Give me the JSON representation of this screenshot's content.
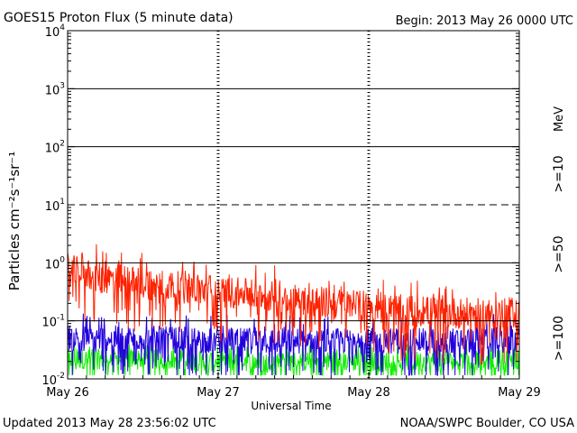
{
  "header": {
    "title": "GOES15 Proton Flux (5 minute data)",
    "begin": "Begin: 2013 May 26 0000 UTC"
  },
  "footer": {
    "updated": "Updated 2013 May 28 23:56:02 UTC",
    "source": "NOAA/SWPC Boulder, CO USA"
  },
  "chart_data": {
    "type": "line",
    "title": "GOES15 Proton Flux (5 minute data)",
    "xlabel": "Universal Time",
    "ylabel": "Particles cm⁻²s⁻¹sr⁻¹",
    "y_scale": "log",
    "ylim": [
      0.01,
      10000
    ],
    "xlim": [
      "2013-05-26",
      "2013-05-29"
    ],
    "x_ticks": [
      "May 26",
      "May 27",
      "May 28",
      "May 29"
    ],
    "y_ticks": [
      {
        "base": "10",
        "exp": "-2"
      },
      {
        "base": "10",
        "exp": "-1"
      },
      {
        "base": "10",
        "exp": "0"
      },
      {
        "base": "10",
        "exp": "1"
      },
      {
        "base": "10",
        "exp": "2"
      },
      {
        "base": "10",
        "exp": "3"
      },
      {
        "base": "10",
        "exp": "4"
      }
    ],
    "unit_label": "MeV",
    "reference_lines": [
      {
        "y": 10,
        "style": "dashed"
      },
      {
        "y": 1000,
        "style": "solid"
      },
      {
        "y": 100,
        "style": "solid"
      },
      {
        "y": 1,
        "style": "solid"
      },
      {
        "y": 0.1,
        "style": "solid"
      }
    ],
    "series": [
      {
        "name": ">=10",
        "color": "#ff2200",
        "x": [
          "2013-05-26 00:00",
          "2013-05-26 06:00",
          "2013-05-26 12:00",
          "2013-05-26 18:00",
          "2013-05-27 00:00",
          "2013-05-27 06:00",
          "2013-05-27 12:00",
          "2013-05-27 18:00",
          "2013-05-28 00:00",
          "2013-05-28 06:00",
          "2013-05-28 12:00",
          "2013-05-28 18:00",
          "2013-05-28 23:55"
        ],
        "y": [
          0.75,
          0.55,
          0.45,
          0.38,
          0.32,
          0.28,
          0.24,
          0.2,
          0.17,
          0.15,
          0.14,
          0.13,
          0.14
        ]
      },
      {
        "name": ">=50",
        "color": "#2200dd",
        "x": [
          "2013-05-26 00:00",
          "2013-05-26 12:00",
          "2013-05-27 00:00",
          "2013-05-27 12:00",
          "2013-05-28 00:00",
          "2013-05-28 12:00",
          "2013-05-28 23:55"
        ],
        "y": [
          0.05,
          0.05,
          0.045,
          0.045,
          0.045,
          0.045,
          0.05
        ]
      },
      {
        "name": ">=100",
        "color": "#11ee00",
        "x": [
          "2013-05-26 00:00",
          "2013-05-26 12:00",
          "2013-05-27 00:00",
          "2013-05-27 12:00",
          "2013-05-28 00:00",
          "2013-05-28 12:00",
          "2013-05-28 23:55"
        ],
        "y": [
          0.022,
          0.022,
          0.02,
          0.02,
          0.02,
          0.02,
          0.022
        ]
      }
    ]
  }
}
